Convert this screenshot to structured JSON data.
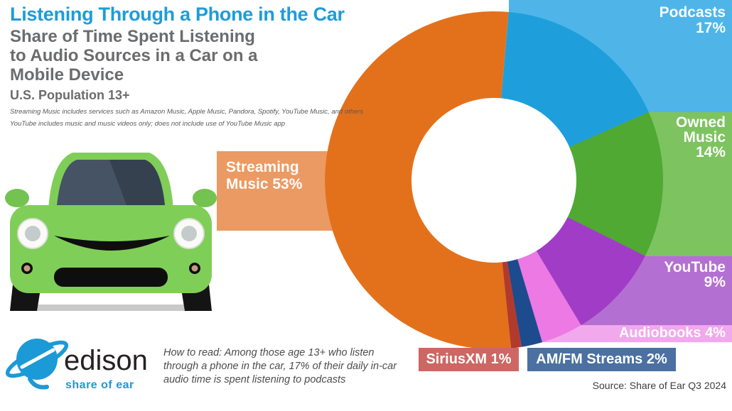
{
  "header": {
    "title": "Listening Through a Phone in the Car",
    "subtitle_lines": [
      "Share of Time Spent Listening",
      "to Audio Sources in a Car on a",
      "Mobile Device"
    ],
    "population": "U.S. Population 13+",
    "footnotes": [
      "Streaming Music includes services such as Amazon Music, Apple Music, Pandora, Spotify, YouTube Music, and others",
      "YouTube includes music and music videos only; does not include use of YouTube Music app"
    ]
  },
  "chart_data": {
    "type": "pie",
    "style": "donut",
    "title": "Share of Time Spent Listening to Audio Sources in a Car on a Mobile Device",
    "subtitle": "U.S. Population 13+",
    "start_angle_deg": 5,
    "direction": "clockwise",
    "legend_position": "callout-bands",
    "segments": [
      {
        "id": "podcasts",
        "label": "Podcasts",
        "value": 17,
        "color": "#1E9FDC",
        "band_color": "#4FB5E8",
        "band": "right"
      },
      {
        "id": "owned",
        "label": "Owned Music",
        "value": 14,
        "color": "#4FA932",
        "band_color": "#7DC360",
        "band": "right"
      },
      {
        "id": "youtube",
        "label": "YouTube",
        "value": 9,
        "color": "#A13CC6",
        "band_color": "#B46FD2",
        "band": "right"
      },
      {
        "id": "audiobooks",
        "label": "Audiobooks",
        "value": 4,
        "color": "#EC79E4",
        "band_color": "#F2A8EC",
        "band": "right"
      },
      {
        "id": "amfm",
        "label": "AM/FM Streams",
        "value": 2,
        "color": "#1C4B8E",
        "box_color": "#4B70A1",
        "band": "none"
      },
      {
        "id": "siriusxm",
        "label": "SiriusXM",
        "value": 1,
        "color": "#B23A2D",
        "box_color": "#CC6763",
        "band": "none"
      },
      {
        "id": "streaming",
        "label": "Streaming Music",
        "value": 53,
        "color": "#E3711C",
        "band_color": "#EB9A63",
        "band": "left"
      }
    ]
  },
  "labels": {
    "podcasts": [
      "Podcasts",
      "17%"
    ],
    "owned": [
      "Owned",
      "Music",
      "14%"
    ],
    "youtube": [
      "YouTube",
      "9%"
    ],
    "audiobooks": "Audiobooks 4%",
    "streaming": [
      "Streaming",
      "Music 53%"
    ],
    "siriusxm": "SiriusXM 1%",
    "amfm": "AM/FM Streams 2%"
  },
  "footer": {
    "logo_text": "edison",
    "logo_tagline": "share of ear",
    "how_to_read_lines": [
      "How to read: Among those age 13+ who listen",
      "through a phone in the car, 17% of their daily in-car",
      "audio time is spent listening to podcasts"
    ],
    "source": "Source: Share of Ear Q3 2024"
  },
  "colors": {
    "title_blue": "#1E9CD9",
    "subtitle_gray": "#6B6C6E",
    "footnote_gray": "#58595B",
    "how_to_read_gray": "#4B4C4E",
    "source_gray": "#3E3E40",
    "logo_blue": "#1B9AD7",
    "logo_text_black": "#262223",
    "car_green": "#7FCE58",
    "windshield_slate": "#465364"
  }
}
